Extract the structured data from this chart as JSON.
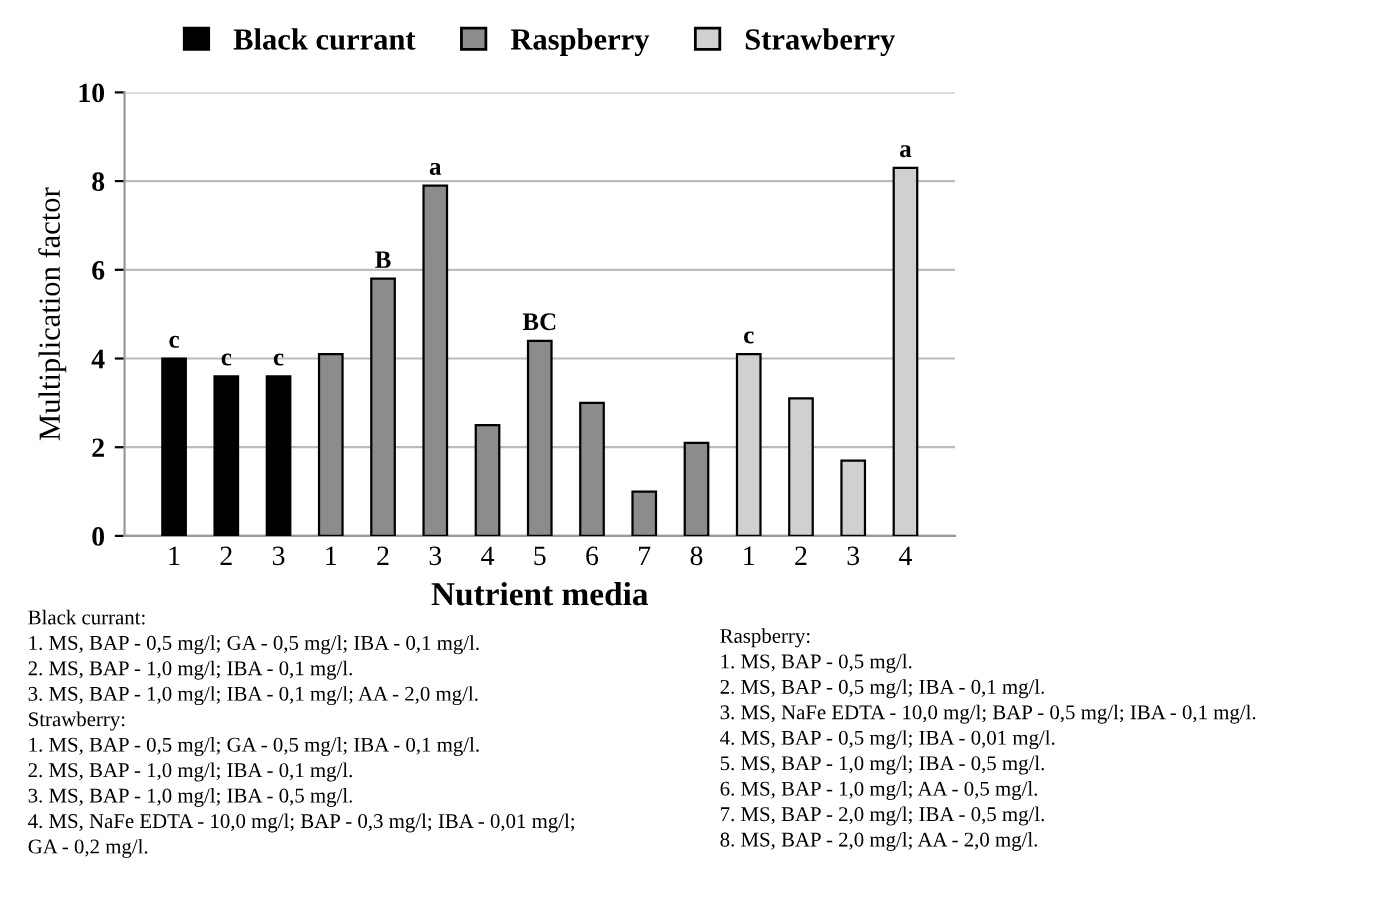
{
  "chart_data": {
    "type": "bar",
    "xlabel": "Nutrient media",
    "ylabel": "Multiplication factor",
    "categories": [
      "1",
      "2",
      "3",
      "1",
      "2",
      "3",
      "4",
      "5",
      "6",
      "7",
      "8",
      "1",
      "2",
      "3",
      "4"
    ],
    "series": [
      {
        "name": "Black currant",
        "color": "#000000",
        "values": [
          4.0,
          3.6,
          3.6,
          null,
          null,
          null,
          null,
          null,
          null,
          null,
          null,
          null,
          null,
          null,
          null
        ],
        "value_labels": [
          "c",
          "c",
          "c",
          null,
          null,
          null,
          null,
          null,
          null,
          null,
          null,
          null,
          null,
          null,
          null
        ]
      },
      {
        "name": "Raspberry",
        "color": "#8c8c8c",
        "values": [
          null,
          null,
          null,
          4.1,
          5.8,
          7.9,
          2.5,
          4.4,
          3.0,
          1.0,
          2.1,
          null,
          null,
          null,
          null
        ],
        "value_labels": [
          null,
          null,
          null,
          null,
          "B",
          "a",
          null,
          "BC",
          null,
          null,
          null,
          null,
          null,
          null,
          null
        ]
      },
      {
        "name": "Strawberry",
        "color": "#d0d0d0",
        "values": [
          null,
          null,
          null,
          null,
          null,
          null,
          null,
          null,
          null,
          null,
          null,
          4.1,
          3.1,
          1.7,
          8.3
        ],
        "value_labels": [
          null,
          null,
          null,
          null,
          null,
          null,
          null,
          null,
          null,
          null,
          null,
          "c",
          null,
          null,
          "a"
        ]
      }
    ],
    "ylim": [
      0,
      10
    ],
    "yticks": [
      0,
      2,
      4,
      6,
      8,
      10
    ],
    "grid": "y",
    "legend": "top",
    "annotations": [
      "Black currant:\n1. MS, BAP - 0,5 mg/l; GA - 0,5 mg/l; IBA - 0,1 mg/l.\n2. MS, BAP - 1,0 mg/l; IBA - 0,1 mg/l.\n3. MS, BAP - 1,0 mg/l; IBA - 0,1 mg/l; AA - 2,0 mg/l.\nStrawberry:\n1. MS, BAP - 0,5 mg/l; GA - 0,5 mg/l; IBA - 0,1 mg/l.\n2. MS, BAP - 1,0 mg/l; IBA - 0,1 mg/l.\n3. MS, BAP - 1,0 mg/l; IBA - 0,5 mg/l.\n4. MS, NaFe EDTA - 10,0 mg/l; BAP - 0,3 mg/l; IBA - 0,01 mg/l;\nGA - 0,2 mg/l.",
      "Raspberry:\n1. MS, BAP - 0,5 mg/l.\n2. MS, BAP - 0,5 mg/l; IBA - 0,1 mg/l.\n3. MS, NaFe EDTA - 10,0 mg/l; BAP - 0,5 mg/l; IBA - 0,1 mg/l.\n4. MS, BAP - 0,5 mg/l; IBA - 0,01 mg/l.\n5. MS, BAP - 1,0 mg/l; IBA - 0,5 mg/l.\n6. MS, BAP - 1,0 mg/l; AA - 0,5 mg/l.\n7. MS, BAP - 2,0 mg/l; IBA - 0,5 mg/l.\n8. MS, BAP - 2,0 mg/l; AA - 2,0 mg/l."
    ]
  }
}
